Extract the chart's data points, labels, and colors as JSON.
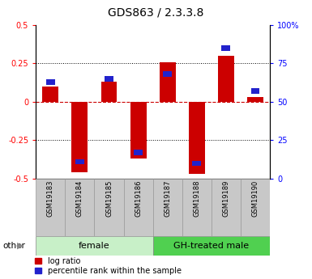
{
  "title": "GDS863 / 2.3.3.8",
  "samples": [
    "GSM19183",
    "GSM19184",
    "GSM19185",
    "GSM19186",
    "GSM19187",
    "GSM19188",
    "GSM19189",
    "GSM19190"
  ],
  "log_ratios": [
    0.1,
    -0.46,
    0.13,
    -0.37,
    0.26,
    -0.47,
    0.3,
    0.03
  ],
  "percentile_ranks_pct": [
    63,
    11,
    65,
    17,
    68,
    10,
    85,
    57
  ],
  "groups": [
    {
      "label": "female",
      "start": 0,
      "end": 3,
      "color": "#c8f0c8"
    },
    {
      "label": "GH-treated male",
      "start": 4,
      "end": 7,
      "color": "#50d050"
    }
  ],
  "ylim": [
    -0.5,
    0.5
  ],
  "yticks_left": [
    -0.5,
    -0.25,
    0.0,
    0.25,
    0.5
  ],
  "ytick_labels_left": [
    "-0.5",
    "-0.25",
    "0",
    "0.25",
    "0.5"
  ],
  "ytick_labels_right": [
    "0",
    "25",
    "50",
    "75",
    "100%"
  ],
  "bar_color_red": "#cc0000",
  "bar_color_blue": "#2222cc",
  "bar_width": 0.55,
  "blue_bar_width": 0.3,
  "blue_bar_height": 0.035,
  "hline_color": "#cc0000",
  "grid_color": "black",
  "sample_box_color": "#c8c8c8",
  "other_label": "other",
  "legend_red": "log ratio",
  "legend_blue": "percentile rank within the sample",
  "title_fontsize": 10,
  "tick_fontsize": 7,
  "sample_fontsize": 6,
  "group_fontsize": 8,
  "legend_fontsize": 7
}
